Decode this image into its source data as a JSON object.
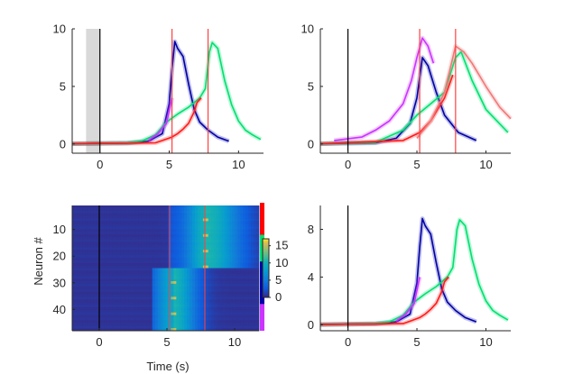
{
  "chart_data": [
    {
      "type": "line",
      "panel": "top-left",
      "xlim": [
        -2,
        11.8
      ],
      "ylim": [
        -0.8,
        10
      ],
      "xticks": [
        0,
        5,
        10
      ],
      "yticks": [
        0,
        5,
        10
      ],
      "shaded_interval": [
        -1,
        0
      ],
      "event_lines": {
        "black": [
          0
        ],
        "red": [
          5.2,
          7.8
        ]
      },
      "series": [
        {
          "color": "#0000a8",
          "values": [
            [
              -2,
              0.02
            ],
            [
              0,
              0.05
            ],
            [
              2,
              0.08
            ],
            [
              3.5,
              0.25
            ],
            [
              4.5,
              0.9
            ],
            [
              5.0,
              3.5
            ],
            [
              5.2,
              6.5
            ],
            [
              5.4,
              8.9
            ],
            [
              5.6,
              8.3
            ],
            [
              6.0,
              7.6
            ],
            [
              6.4,
              5.2
            ],
            [
              6.8,
              3.0
            ],
            [
              7.2,
              1.9
            ],
            [
              7.8,
              1.2
            ],
            [
              8.5,
              0.6
            ],
            [
              9.3,
              0.25
            ]
          ]
        },
        {
          "color": "#00e070",
          "values": [
            [
              -2,
              0.02
            ],
            [
              0,
              0.05
            ],
            [
              2,
              0.1
            ],
            [
              3,
              0.25
            ],
            [
              4,
              0.8
            ],
            [
              4.8,
              1.9
            ],
            [
              5.6,
              2.6
            ],
            [
              6.4,
              3.2
            ],
            [
              7.2,
              4.0
            ],
            [
              7.6,
              4.8
            ],
            [
              7.9,
              8.0
            ],
            [
              8.1,
              8.8
            ],
            [
              8.5,
              8.3
            ],
            [
              9.0,
              5.5
            ],
            [
              9.5,
              3.4
            ],
            [
              10.0,
              2.0
            ],
            [
              10.5,
              1.2
            ],
            [
              11.0,
              0.8
            ],
            [
              11.6,
              0.4
            ]
          ]
        },
        {
          "color": "#ff1a1a",
          "values": [
            [
              -2,
              0.02
            ],
            [
              0,
              0.05
            ],
            [
              2,
              0.06
            ],
            [
              4,
              0.1
            ],
            [
              4.5,
              0.3
            ],
            [
              5.2,
              0.6
            ],
            [
              5.6,
              0.9
            ],
            [
              6.0,
              1.3
            ],
            [
              6.4,
              1.8
            ],
            [
              6.8,
              2.8
            ],
            [
              7.0,
              3.6
            ],
            [
              7.3,
              4.0
            ]
          ]
        },
        {
          "color": "#cc33ff",
          "values": [
            [
              3.5,
              0.3
            ],
            [
              4.2,
              0.9
            ],
            [
              4.8,
              1.8
            ],
            [
              5.2,
              4.0
            ]
          ]
        }
      ]
    },
    {
      "type": "line",
      "panel": "top-right",
      "xlim": [
        -2,
        11.8
      ],
      "ylim": [
        -0.8,
        10
      ],
      "xticks": [
        0,
        5,
        10
      ],
      "yticks": [
        0,
        5,
        10
      ],
      "event_lines": {
        "black": [
          0
        ],
        "red": [
          5.2,
          7.8
        ]
      },
      "series": [
        {
          "color": "#0000a8",
          "values": [
            [
              -2,
              0.02
            ],
            [
              2,
              0.1
            ],
            [
              3.5,
              0.5
            ],
            [
              4.5,
              1.8
            ],
            [
              5.0,
              4.0
            ],
            [
              5.4,
              7.5
            ],
            [
              5.8,
              6.8
            ],
            [
              6.4,
              4.5
            ],
            [
              7.0,
              2.5
            ],
            [
              8.0,
              1.0
            ],
            [
              9.3,
              0.3
            ]
          ]
        },
        {
          "color": "#00e070",
          "values": [
            [
              -2,
              0.02
            ],
            [
              2,
              0.15
            ],
            [
              4,
              1.2
            ],
            [
              5,
              2.5
            ],
            [
              6,
              3.5
            ],
            [
              7,
              4.5
            ],
            [
              7.8,
              7.5
            ],
            [
              8.2,
              8.0
            ],
            [
              9,
              5.5
            ],
            [
              10,
              3.0
            ],
            [
              11.6,
              1.0
            ]
          ]
        },
        {
          "color": "#ff1a1a",
          "values": [
            [
              -2,
              0.02
            ],
            [
              4,
              0.3
            ],
            [
              5.2,
              1.0
            ],
            [
              6,
              2.0
            ],
            [
              7,
              4.0
            ],
            [
              7.6,
              6.0
            ]
          ]
        },
        {
          "color": "#cc33ff",
          "values": [
            [
              -1,
              0.3
            ],
            [
              1,
              0.6
            ],
            [
              2,
              1.2
            ],
            [
              3,
              2.0
            ],
            [
              4,
              3.5
            ],
            [
              4.6,
              5.5
            ],
            [
              5.0,
              7.5
            ],
            [
              5.4,
              9.2
            ],
            [
              5.8,
              8.5
            ],
            [
              6.2,
              7.0
            ]
          ]
        },
        {
          "color": "#f07878",
          "values": [
            [
              5,
              0.5
            ],
            [
              6,
              2.0
            ],
            [
              7,
              4.5
            ],
            [
              7.8,
              8.5
            ],
            [
              8.4,
              8.0
            ],
            [
              9,
              7.0
            ],
            [
              10,
              5.0
            ],
            [
              11,
              3.2
            ],
            [
              11.8,
              2.2
            ]
          ]
        }
      ]
    },
    {
      "type": "heatmap",
      "panel": "bottom-left",
      "xlim": [
        -2,
        11.8
      ],
      "ylim": [
        1,
        48
      ],
      "xticks": [
        0,
        5,
        10
      ],
      "yticks": [
        10,
        20,
        30,
        40
      ],
      "xlabel": "Time (s)",
      "ylabel": "Neuron #",
      "event_lines": {
        "black": [
          0
        ],
        "red": [
          5.2,
          7.8
        ]
      },
      "colorbar": {
        "ticks": [
          0,
          5,
          10,
          15
        ],
        "range": [
          0,
          17
        ]
      },
      "group_colors": [
        "#ff0000",
        "#00e070",
        "#0000a8",
        "#cc33ff"
      ],
      "groups": [
        [
          1,
          12
        ],
        [
          13,
          22
        ],
        [
          23,
          38
        ],
        [
          39,
          48
        ]
      ]
    },
    {
      "type": "line",
      "panel": "bottom-right",
      "xlim": [
        -2,
        11.8
      ],
      "ylim": [
        -0.5,
        10
      ],
      "xticks": [
        0,
        5,
        10
      ],
      "yticks": [
        0,
        4,
        8
      ],
      "event_lines": {
        "black": [
          0
        ]
      },
      "series": [
        {
          "color": "#0000a8",
          "values": [
            [
              -2,
              0.02
            ],
            [
              0,
              0.05
            ],
            [
              2,
              0.08
            ],
            [
              3.5,
              0.25
            ],
            [
              4.5,
              0.9
            ],
            [
              5.0,
              3.5
            ],
            [
              5.2,
              6.5
            ],
            [
              5.4,
              8.9
            ],
            [
              5.6,
              8.3
            ],
            [
              6.0,
              7.6
            ],
            [
              6.4,
              5.2
            ],
            [
              6.8,
              3.0
            ],
            [
              7.2,
              1.9
            ],
            [
              7.8,
              1.2
            ],
            [
              8.5,
              0.6
            ],
            [
              9.3,
              0.25
            ]
          ]
        },
        {
          "color": "#00e070",
          "values": [
            [
              -2,
              0.02
            ],
            [
              0,
              0.05
            ],
            [
              2,
              0.1
            ],
            [
              3,
              0.25
            ],
            [
              4,
              0.8
            ],
            [
              4.8,
              1.9
            ],
            [
              5.6,
              2.6
            ],
            [
              6.4,
              3.2
            ],
            [
              7.2,
              4.0
            ],
            [
              7.6,
              4.8
            ],
            [
              7.9,
              8.0
            ],
            [
              8.1,
              8.8
            ],
            [
              8.5,
              8.3
            ],
            [
              9.0,
              5.5
            ],
            [
              9.5,
              3.4
            ],
            [
              10.0,
              2.0
            ],
            [
              10.5,
              1.2
            ],
            [
              11.0,
              0.8
            ],
            [
              11.6,
              0.4
            ]
          ]
        },
        {
          "color": "#ff1a1a",
          "values": [
            [
              -2,
              0.02
            ],
            [
              0,
              0.05
            ],
            [
              2,
              0.06
            ],
            [
              4,
              0.1
            ],
            [
              4.5,
              0.3
            ],
            [
              5.2,
              0.6
            ],
            [
              5.6,
              0.9
            ],
            [
              6.0,
              1.3
            ],
            [
              6.4,
              1.8
            ],
            [
              6.8,
              2.8
            ],
            [
              7.0,
              3.6
            ],
            [
              7.3,
              4.0
            ]
          ]
        },
        {
          "color": "#cc33ff",
          "values": [
            [
              3.5,
              0.3
            ],
            [
              4.2,
              0.9
            ],
            [
              4.8,
              1.8
            ],
            [
              5.2,
              4.0
            ]
          ]
        }
      ]
    }
  ]
}
